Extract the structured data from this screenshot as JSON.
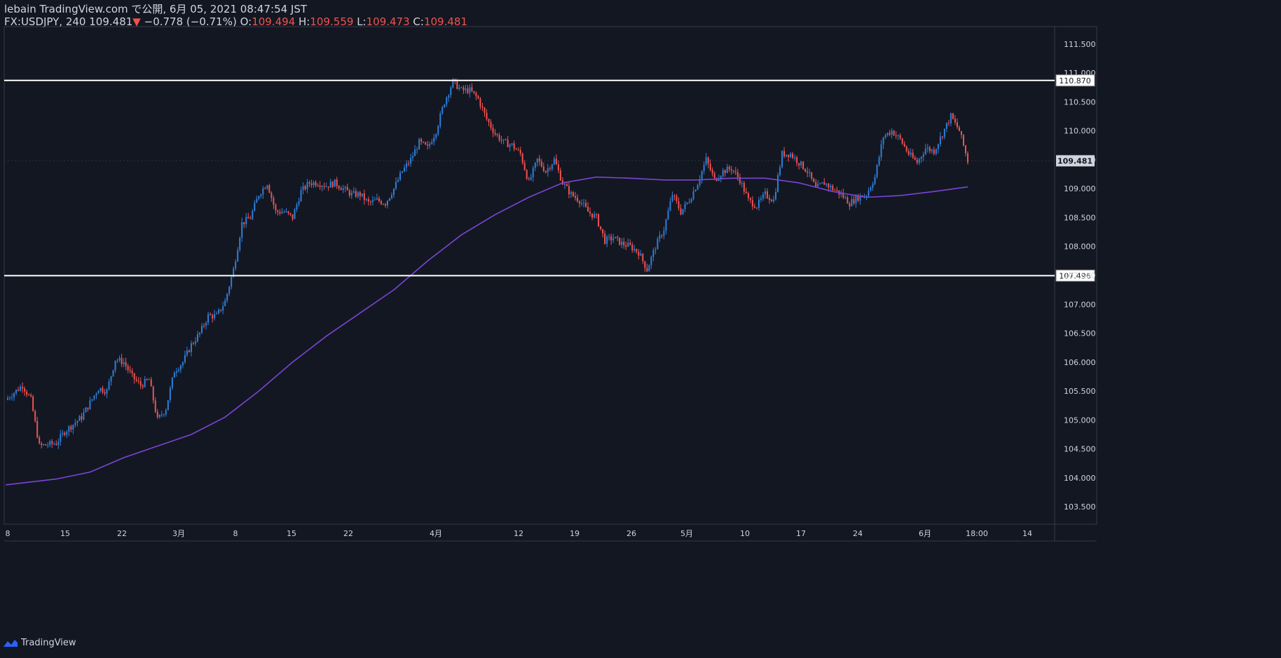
{
  "header": {
    "publisher_line": "lebain TradingView.com で公開, 6月 05, 2021 08:47:54 JST",
    "symbol": "FX:USDJPY, 240",
    "last": "109.481",
    "change_arrow": "▼",
    "change": "−0.778 (−0.71%)",
    "o_label": "O:",
    "o_value": "109.494",
    "h_label": "H:",
    "h_value": "109.559",
    "l_label": "L:",
    "l_value": "109.473",
    "c_label": "C:",
    "c_value": "109.481"
  },
  "footer": {
    "brand": "TradingView"
  },
  "colors": {
    "background": "#131722",
    "up_candle": "#2e7fd9",
    "down_candle": "#ef5350",
    "moving_average": "#7b44d4",
    "horizontal_line": "#ffffff",
    "axis_text": "#d1d4dc",
    "price_tag_bg": "#ffffff",
    "price_tag_text": "#131722"
  },
  "chart_data": {
    "type": "candlestick",
    "symbol": "FX:USDJPY",
    "timeframe": "240",
    "ylim": [
      103.2,
      111.8
    ],
    "y_ticks": [
      "103.500",
      "104.000",
      "104.500",
      "105.000",
      "105.500",
      "106.000",
      "106.500",
      "107.000",
      "107.500",
      "108.000",
      "108.500",
      "109.000",
      "109.500",
      "110.000",
      "110.500",
      "111.000",
      "111.500"
    ],
    "x_ticks": [
      "8",
      "15",
      "22",
      "3月",
      "8",
      "15",
      "22",
      "4月",
      "12",
      "19",
      "26",
      "5月",
      "10",
      "17",
      "24",
      "6月",
      "18:00",
      "14"
    ],
    "horizontal_lines": [
      {
        "label": "110.870",
        "value": 110.87
      },
      {
        "label": "107.496",
        "value": 107.496
      }
    ],
    "last_price_label": "109.481",
    "last_price": 109.481,
    "close_path": [
      [
        0,
        105.35
      ],
      [
        2,
        105.6
      ],
      [
        3,
        105.35
      ],
      [
        4,
        104.55
      ],
      [
        6,
        104.6
      ],
      [
        7,
        104.8
      ],
      [
        9,
        105.05
      ],
      [
        11,
        105.55
      ],
      [
        12,
        105.5
      ],
      [
        13,
        106.05
      ],
      [
        14,
        106.0
      ],
      [
        15,
        105.75
      ],
      [
        16,
        105.6
      ],
      [
        17,
        105.7
      ],
      [
        18,
        105.0
      ],
      [
        19,
        105.2
      ],
      [
        20,
        105.85
      ],
      [
        21,
        106.0
      ],
      [
        22,
        106.3
      ],
      [
        23,
        106.5
      ],
      [
        24,
        106.8
      ],
      [
        25,
        106.8
      ],
      [
        26,
        107.05
      ],
      [
        27,
        107.6
      ],
      [
        28,
        108.4
      ],
      [
        29,
        108.5
      ],
      [
        30,
        108.9
      ],
      [
        31,
        109.1
      ],
      [
        32,
        108.6
      ],
      [
        33,
        108.6
      ],
      [
        34,
        108.5
      ],
      [
        35,
        108.95
      ],
      [
        36,
        109.1
      ],
      [
        37,
        109.1
      ],
      [
        38,
        109.05
      ],
      [
        39,
        109.1
      ],
      [
        40,
        109.0
      ],
      [
        41,
        108.9
      ],
      [
        42,
        108.9
      ],
      [
        43,
        108.75
      ],
      [
        44,
        108.8
      ],
      [
        45,
        108.75
      ],
      [
        46,
        109.0
      ],
      [
        47,
        109.3
      ],
      [
        48,
        109.5
      ],
      [
        49,
        109.8
      ],
      [
        50,
        109.7
      ],
      [
        51,
        110.0
      ],
      [
        52,
        110.5
      ],
      [
        53,
        110.85
      ],
      [
        54,
        110.7
      ],
      [
        55,
        110.7
      ],
      [
        56,
        110.55
      ],
      [
        57,
        110.2
      ],
      [
        58,
        109.95
      ],
      [
        59,
        109.8
      ],
      [
        60,
        109.75
      ],
      [
        61,
        109.6
      ],
      [
        62,
        109.1
      ],
      [
        63,
        109.5
      ],
      [
        64,
        109.3
      ],
      [
        65,
        109.5
      ],
      [
        66,
        109.1
      ],
      [
        67,
        108.9
      ],
      [
        68,
        108.8
      ],
      [
        69,
        108.6
      ],
      [
        70,
        108.5
      ],
      [
        71,
        108.1
      ],
      [
        72,
        108.15
      ],
      [
        73,
        108.05
      ],
      [
        74,
        108.0
      ],
      [
        75,
        107.9
      ],
      [
        76,
        107.6
      ],
      [
        77,
        108.0
      ],
      [
        78,
        108.3
      ],
      [
        79,
        108.9
      ],
      [
        80,
        108.6
      ],
      [
        81,
        108.8
      ],
      [
        82,
        109.1
      ],
      [
        83,
        109.5
      ],
      [
        84,
        109.15
      ],
      [
        85,
        109.3
      ],
      [
        86,
        109.35
      ],
      [
        87,
        109.15
      ],
      [
        88,
        108.8
      ],
      [
        89,
        108.7
      ],
      [
        90,
        108.9
      ],
      [
        91,
        108.8
      ],
      [
        92,
        109.6
      ],
      [
        93,
        109.6
      ],
      [
        94,
        109.45
      ],
      [
        95,
        109.3
      ],
      [
        96,
        109.0
      ],
      [
        97,
        109.1
      ],
      [
        98,
        109.0
      ],
      [
        99,
        108.9
      ],
      [
        100,
        108.75
      ],
      [
        101,
        108.85
      ],
      [
        102,
        108.9
      ],
      [
        103,
        109.2
      ],
      [
        104,
        109.9
      ],
      [
        105,
        110.0
      ],
      [
        106,
        109.85
      ],
      [
        107,
        109.6
      ],
      [
        108,
        109.45
      ],
      [
        109,
        109.7
      ],
      [
        110,
        109.65
      ],
      [
        111,
        109.95
      ],
      [
        112,
        110.25
      ],
      [
        113,
        110.0
      ],
      [
        114,
        109.481
      ]
    ],
    "moving_average": [
      [
        0,
        103.88
      ],
      [
        6,
        103.98
      ],
      [
        10,
        104.1
      ],
      [
        14,
        104.35
      ],
      [
        18,
        104.55
      ],
      [
        22,
        104.75
      ],
      [
        26,
        105.05
      ],
      [
        30,
        105.5
      ],
      [
        34,
        106.0
      ],
      [
        38,
        106.45
      ],
      [
        42,
        106.85
      ],
      [
        46,
        107.25
      ],
      [
        50,
        107.75
      ],
      [
        54,
        108.2
      ],
      [
        58,
        108.55
      ],
      [
        62,
        108.85
      ],
      [
        66,
        109.1
      ],
      [
        70,
        109.2
      ],
      [
        74,
        109.18
      ],
      [
        78,
        109.15
      ],
      [
        82,
        109.15
      ],
      [
        86,
        109.18
      ],
      [
        90,
        109.18
      ],
      [
        94,
        109.1
      ],
      [
        98,
        108.95
      ],
      [
        102,
        108.85
      ],
      [
        106,
        108.88
      ],
      [
        110,
        108.95
      ],
      [
        114,
        109.03
      ]
    ]
  }
}
